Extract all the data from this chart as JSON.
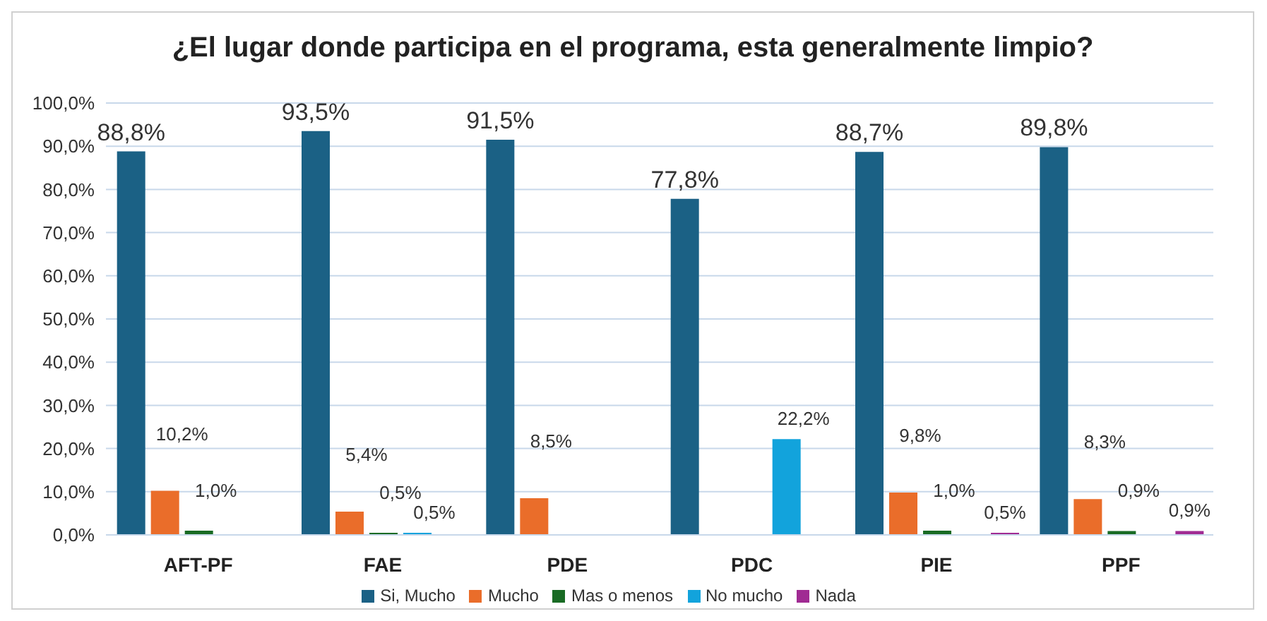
{
  "chart_data": {
    "type": "bar",
    "title": "¿El lugar donde participa  en el programa, esta generalmente limpio?",
    "categories": [
      "AFT-PF",
      "FAE",
      "PDE",
      "PDC",
      "PIE",
      "PPF"
    ],
    "series": [
      {
        "name": "Si, Mucho",
        "color": "#1b6185",
        "values": [
          88.8,
          93.5,
          91.5,
          77.8,
          88.7,
          89.8
        ],
        "value_labels": [
          "88,8%",
          "93,5%",
          "91,5%",
          "77,8%",
          "88,7%",
          "89,8%"
        ]
      },
      {
        "name": "Mucho",
        "color": "#ea6d2a",
        "values": [
          10.2,
          5.4,
          8.5,
          null,
          9.8,
          8.3
        ],
        "value_labels": [
          "10,2%",
          "5,4%",
          "8,5%",
          null,
          "9,8%",
          "8,3%"
        ]
      },
      {
        "name": "Mas o menos",
        "color": "#196b24",
        "values": [
          1.0,
          0.5,
          null,
          null,
          1.0,
          0.9
        ],
        "value_labels": [
          "1,0%",
          "0,5%",
          null,
          null,
          "1,0%",
          "0,9%"
        ]
      },
      {
        "name": "No mucho",
        "color": "#12a3dc",
        "values": [
          null,
          0.5,
          null,
          22.2,
          null,
          null
        ],
        "value_labels": [
          null,
          "0,5%",
          null,
          "22,2%",
          null,
          null
        ]
      },
      {
        "name": "Nada",
        "color": "#a02b93",
        "values": [
          null,
          null,
          null,
          null,
          0.5,
          0.9
        ],
        "value_labels": [
          null,
          null,
          null,
          null,
          "0,5%",
          "0,9%"
        ]
      }
    ],
    "ylim": [
      0,
      100
    ],
    "yticks": [
      {
        "value": 0,
        "label": "0,0%"
      },
      {
        "value": 10,
        "label": "10,0%"
      },
      {
        "value": 20,
        "label": "20,0%"
      },
      {
        "value": 30,
        "label": "30,0%"
      },
      {
        "value": 40,
        "label": "40,0%"
      },
      {
        "value": 50,
        "label": "50,0%"
      },
      {
        "value": 60,
        "label": "60,0%"
      },
      {
        "value": 70,
        "label": "70,0%"
      },
      {
        "value": 80,
        "label": "80,0%"
      },
      {
        "value": 90,
        "label": "90,0%"
      },
      {
        "value": 100,
        "label": "100,0%"
      }
    ],
    "grid": "y",
    "legend": "bottom"
  }
}
